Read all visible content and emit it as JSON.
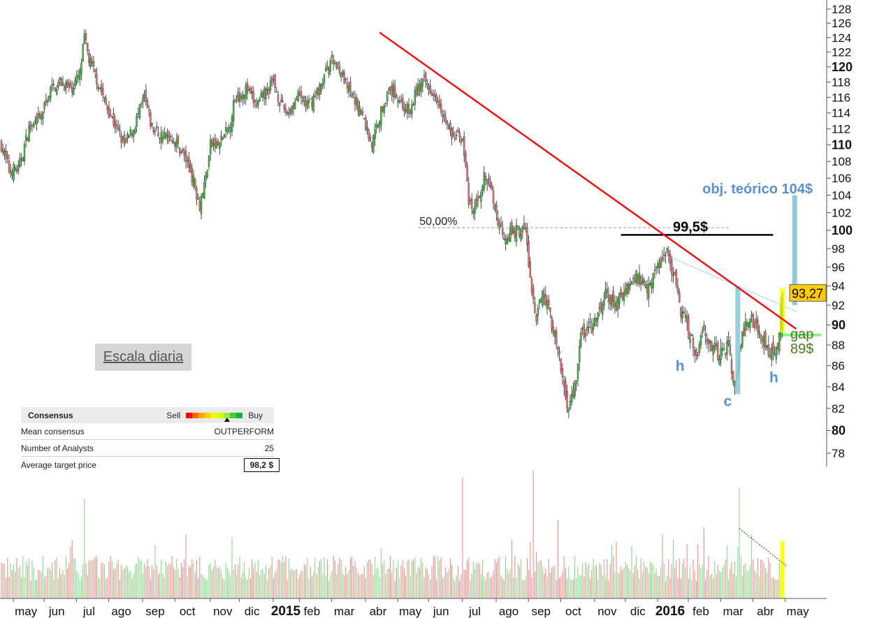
{
  "chart_data": {
    "type": "candlestick",
    "scale": "log",
    "ylim": [
      77,
      130
    ],
    "y_ticks": [
      128,
      126,
      124,
      122,
      120,
      118,
      116,
      114,
      112,
      110,
      108,
      106,
      104,
      102,
      100,
      98,
      96,
      94,
      92,
      90,
      88,
      86,
      84,
      82,
      80,
      78
    ],
    "y_bold_ticks": [
      120,
      110,
      100,
      90,
      80
    ],
    "x_unit": "trading day index",
    "month_labels": [
      {
        "label": "may",
        "day": 16
      },
      {
        "label": "jun",
        "day": 36
      },
      {
        "label": "jul",
        "day": 57
      },
      {
        "label": "ago",
        "day": 78
      },
      {
        "label": "sep",
        "day": 100
      },
      {
        "label": "oct",
        "day": 121
      },
      {
        "label": "nov",
        "day": 144
      },
      {
        "label": "dic",
        "day": 163
      },
      {
        "label": "2015",
        "day": 185,
        "bold": true
      },
      {
        "label": "feb",
        "day": 202
      },
      {
        "label": "mar",
        "day": 223
      },
      {
        "label": "abr",
        "day": 245
      },
      {
        "label": "may",
        "day": 266
      },
      {
        "label": "jun",
        "day": 286
      },
      {
        "label": "jul",
        "day": 308
      },
      {
        "label": "ago",
        "day": 330
      },
      {
        "label": "sep",
        "day": 351
      },
      {
        "label": "oct",
        "day": 372
      },
      {
        "label": "nov",
        "day": 394
      },
      {
        "label": "dic",
        "day": 414
      },
      {
        "label": "2016",
        "day": 435,
        "bold": true
      },
      {
        "label": "feb",
        "day": 455
      },
      {
        "label": "mar",
        "day": 476
      },
      {
        "label": "abr",
        "day": 497
      },
      {
        "label": "may",
        "day": 518
      }
    ],
    "close_keypoints": [
      [
        0,
        110
      ],
      [
        5,
        107
      ],
      [
        11,
        107
      ],
      [
        18,
        112
      ],
      [
        25,
        113
      ],
      [
        32,
        117
      ],
      [
        39,
        118
      ],
      [
        45,
        117
      ],
      [
        51,
        119
      ],
      [
        54,
        124
      ],
      [
        57,
        121
      ],
      [
        61,
        119
      ],
      [
        68,
        115
      ],
      [
        75,
        112
      ],
      [
        80,
        110
      ],
      [
        86,
        112
      ],
      [
        93,
        116
      ],
      [
        98,
        112
      ],
      [
        105,
        111
      ],
      [
        111,
        111
      ],
      [
        118,
        109
      ],
      [
        123,
        107
      ],
      [
        129,
        103
      ],
      [
        133,
        106
      ],
      [
        136,
        110
      ],
      [
        141,
        110
      ],
      [
        148,
        112
      ],
      [
        152,
        116
      ],
      [
        159,
        117
      ],
      [
        166,
        115
      ],
      [
        170,
        116
      ],
      [
        177,
        118
      ],
      [
        182,
        115
      ],
      [
        186,
        114
      ],
      [
        193,
        116
      ],
      [
        200,
        115
      ],
      [
        207,
        117
      ],
      [
        214,
        121
      ],
      [
        220,
        120
      ],
      [
        225,
        117
      ],
      [
        232,
        115
      ],
      [
        236,
        113
      ],
      [
        241,
        110
      ],
      [
        245,
        113
      ],
      [
        250,
        116
      ],
      [
        255,
        117
      ],
      [
        261,
        115
      ],
      [
        266,
        114
      ],
      [
        270,
        117
      ],
      [
        275,
        118
      ],
      [
        280,
        117
      ],
      [
        284,
        116
      ],
      [
        289,
        113
      ],
      [
        293,
        111
      ],
      [
        300,
        111
      ],
      [
        304,
        103
      ],
      [
        307,
        102
      ],
      [
        314,
        106
      ],
      [
        318,
        105
      ],
      [
        323,
        101
      ],
      [
        327,
        99.5
      ],
      [
        336,
        100
      ],
      [
        341,
        100
      ],
      [
        345,
        93
      ],
      [
        348,
        90
      ],
      [
        352,
        94
      ],
      [
        357,
        91
      ],
      [
        361,
        88
      ],
      [
        366,
        84
      ],
      [
        369,
        82
      ],
      [
        373,
        84
      ],
      [
        377,
        89
      ],
      [
        386,
        90
      ],
      [
        393,
        93
      ],
      [
        400,
        92
      ],
      [
        407,
        94
      ],
      [
        414,
        95
      ],
      [
        420,
        94
      ],
      [
        427,
        96
      ],
      [
        432,
        98
      ],
      [
        436,
        96
      ],
      [
        441,
        92
      ],
      [
        448,
        89
      ],
      [
        452,
        87
      ],
      [
        457,
        90
      ],
      [
        461,
        88
      ],
      [
        466,
        87
      ],
      [
        473,
        88
      ],
      [
        477,
        84
      ],
      [
        481,
        88
      ],
      [
        486,
        91
      ],
      [
        491,
        90
      ],
      [
        495,
        89
      ],
      [
        500,
        87
      ],
      [
        505,
        88
      ],
      [
        508,
        93.27
      ]
    ],
    "last_price": "93,27",
    "volume_spikes": [
      [
        54,
        14
      ],
      [
        120,
        9
      ],
      [
        150,
        8.5
      ],
      [
        300,
        17
      ],
      [
        346,
        18
      ],
      [
        362,
        11
      ],
      [
        400,
        8
      ],
      [
        430,
        9
      ],
      [
        457,
        10
      ],
      [
        480,
        15.5
      ],
      [
        488,
        9
      ]
    ],
    "annotations": {
      "downtrend_line": {
        "from": [
          246,
          124.7
        ],
        "to": [
          517,
          89.6
        ],
        "color": "#ee1111"
      },
      "resistance_line": {
        "from": [
          403,
          99.5
        ],
        "to": [
          502,
          99.5
        ],
        "label": "99,5$"
      },
      "fib_line": {
        "from": [
          271,
          100.3
        ],
        "to": [
          473,
          100.3
        ],
        "label": "50,00%"
      },
      "neckline": {
        "from": [
          436,
          97
        ],
        "to": [
          518,
          91.3
        ]
      },
      "pattern_height_bar": {
        "day": 479,
        "from": 83.3,
        "to": 94
      },
      "target_bar": {
        "day": 516,
        "from": 92,
        "to": 104
      },
      "target_label": "obj. teórico 104$",
      "breakout_highlight": {
        "day": 508,
        "from": 89.2,
        "to": 93.8
      },
      "gap_line": {
        "price": 89,
        "label": "gap",
        "value_label": "89$"
      },
      "pattern_labels": [
        {
          "text": "h",
          "day": 446,
          "price": 85.9
        },
        {
          "text": "c",
          "day": 477,
          "price": 82.6
        },
        {
          "text": "h",
          "day": 507,
          "price": 84.8
        }
      ]
    }
  },
  "scale_label": "Escala diaria",
  "consensus": {
    "title": "Consensus",
    "sell": "Sell",
    "buy": "Buy",
    "gauge_colors": [
      "#ff0000",
      "#ff6a00",
      "#ffa500",
      "#ffd200",
      "#f0ff00",
      "#d4ff00",
      "#9be84b",
      "#3ccf2e",
      "#15b040"
    ],
    "rows": [
      {
        "label": "Mean consensus",
        "value": "OUTPERFORM"
      },
      {
        "label": "Number of Analysts",
        "value": "25"
      },
      {
        "label": "Average target price",
        "value": "98,2 $"
      }
    ]
  }
}
